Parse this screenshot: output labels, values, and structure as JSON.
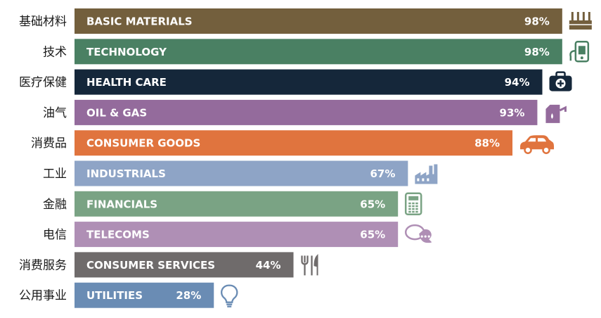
{
  "chart_data": {
    "type": "bar",
    "orientation": "horizontal",
    "value_unit": "%",
    "xlim": [
      0,
      100
    ],
    "categories": [
      {
        "cn": "基础材料",
        "en": "BASIC MATERIALS",
        "label": "98%",
        "value": 98,
        "color": "#735f3d",
        "icon": "factory-pipes-icon"
      },
      {
        "cn": "技术",
        "en": "TECHNOLOGY",
        "label": "98%",
        "value": 98,
        "color": "#4a8063",
        "icon": "gadget-icon"
      },
      {
        "cn": "医疗保健",
        "en": "HEALTH CARE",
        "label": "94%",
        "value": 94,
        "color": "#15273a",
        "icon": "medical-case-icon"
      },
      {
        "cn": "油气",
        "en": "OIL & GAS",
        "label": "93%",
        "value": 93,
        "color": "#946b9c",
        "icon": "fuel-can-icon"
      },
      {
        "cn": "消费品",
        "en": "CONSUMER GOODS",
        "label": "88%",
        "value": 88,
        "color": "#e0743e",
        "icon": "car-icon"
      },
      {
        "cn": "工业",
        "en": "INDUSTRIALS",
        "label": "67%",
        "value": 67,
        "color": "#8ea4c6",
        "icon": "factory-icon"
      },
      {
        "cn": "金融",
        "en": "FINANCIALS",
        "label": "65%",
        "value": 65,
        "color": "#7aa384",
        "icon": "calculator-icon"
      },
      {
        "cn": "电信",
        "en": "TELECOMS",
        "label": "65%",
        "value": 65,
        "color": "#af8fb5",
        "icon": "speech-bubble-icon"
      },
      {
        "cn": "消费服务",
        "en": "CONSUMER SERVICES",
        "label": "44%",
        "value": 44,
        "color": "#6f6b6b",
        "icon": "cutlery-icon"
      },
      {
        "cn": "公用事业",
        "en": "UTILITIES",
        "label": "28%",
        "value": 28,
        "color": "#6a8cb4",
        "icon": "light-bulb-icon"
      }
    ]
  }
}
